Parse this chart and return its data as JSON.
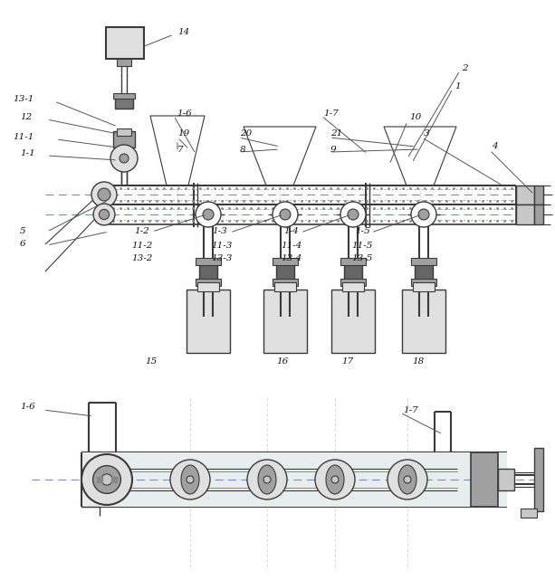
{
  "bg_color": "#ffffff",
  "lc": "#3a3a3a",
  "figsize": [
    6.13,
    6.41
  ],
  "dpi": 100,
  "gray1": "#c8c8c8",
  "gray2": "#a0a0a0",
  "gray3": "#e0e0e0",
  "green": "#6a9a6a",
  "blue_dash": "#7090c0",
  "dot_color": "#888888"
}
